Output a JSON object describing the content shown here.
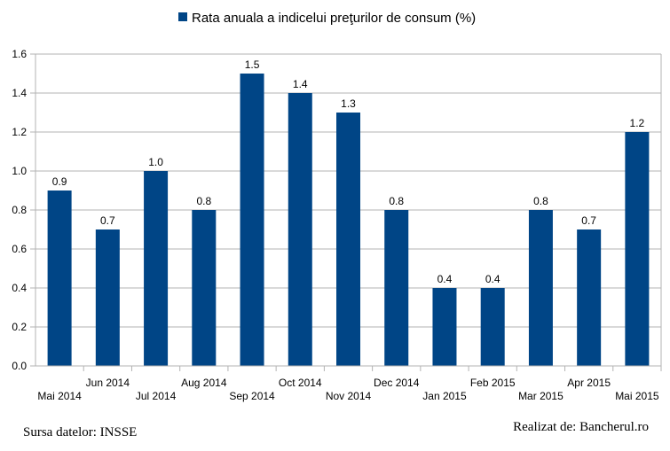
{
  "chart_data": {
    "type": "bar",
    "categories": [
      "Mai 2014",
      "Jun 2014",
      "Jul 2014",
      "Aug 2014",
      "Sep 2014",
      "Oct 2014",
      "Nov 2014",
      "Dec 2014",
      "Jan 2015",
      "Feb 2015",
      "Mar 2015",
      "Apr 2015",
      "Mai 2015"
    ],
    "series": [
      {
        "name": "Rata anuala a indicelui preţurilor de consum (%)",
        "values": [
          0.9,
          0.7,
          1.0,
          0.8,
          1.5,
          1.4,
          1.3,
          0.8,
          0.4,
          0.4,
          0.8,
          0.7,
          1.2
        ],
        "labels": [
          "0.9",
          "0.7",
          "1.0",
          "0.8",
          "1.5",
          "1.4",
          "1.3",
          "0.8",
          "0.4",
          "0.4",
          "0.8",
          "0.7",
          "1.2"
        ],
        "color": "#004586"
      }
    ],
    "ylim": [
      0,
      1.6
    ],
    "yticks": [
      "0.0",
      "0.2",
      "0.4",
      "0.6",
      "0.8",
      "1.0",
      "1.2",
      "1.4",
      "1.6"
    ],
    "grid": true,
    "legend_position": "top"
  },
  "footer": {
    "source": "Sursa datelor: INSSE",
    "credit": "Realizat de: Bancherul.ro"
  }
}
